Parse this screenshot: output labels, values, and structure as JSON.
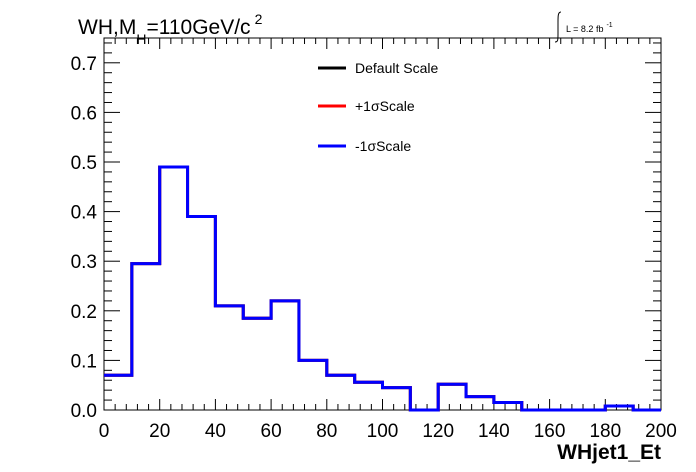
{
  "chart_data": {
    "type": "histogram",
    "title_main": "WH,M",
    "title_sub": "H",
    "title_rest": "=110GeV/c",
    "title_sup": "2",
    "lumi_label": "L = 8.2 fb",
    "lumi_sup": "-1",
    "xlabel": "WHjet1_Et",
    "ylabel": "",
    "xlim": [
      0,
      200
    ],
    "ylim": [
      0,
      0.75
    ],
    "x_ticks": [
      "0",
      "20",
      "40",
      "60",
      "80",
      "100",
      "120",
      "140",
      "160",
      "180",
      "200"
    ],
    "y_ticks": [
      "0.0",
      "0.1",
      "0.2",
      "0.3",
      "0.4",
      "0.5",
      "0.6",
      "0.7"
    ],
    "bin_edges": [
      0,
      10,
      20,
      30,
      40,
      50,
      60,
      70,
      80,
      90,
      100,
      110,
      120,
      130,
      140,
      150,
      160,
      170,
      180,
      190,
      200
    ],
    "legend": [
      {
        "name": "Default Scale",
        "color": "#000000"
      },
      {
        "name": "+1σScale",
        "color": "#ff0000"
      },
      {
        "name": "-1σScale",
        "color": "#0000ff"
      }
    ],
    "series": [
      {
        "name": "Default Scale",
        "color": "#000000",
        "values": [
          0.07,
          0.295,
          0.49,
          0.39,
          0.21,
          0.185,
          0.22,
          0.1,
          0.07,
          0.056,
          0.045,
          0.0,
          0.052,
          0.027,
          0.015,
          0.0,
          0.0,
          0.0,
          0.008,
          0.0
        ]
      },
      {
        "name": "+1σScale",
        "color": "#ff0000",
        "values": [
          0.07,
          0.295,
          0.49,
          0.39,
          0.21,
          0.185,
          0.22,
          0.1,
          0.07,
          0.056,
          0.045,
          0.0,
          0.052,
          0.027,
          0.015,
          0.0,
          0.0,
          0.0,
          0.008,
          0.0
        ]
      },
      {
        "name": "-1σScale",
        "color": "#0000ff",
        "values": [
          0.07,
          0.295,
          0.49,
          0.39,
          0.21,
          0.185,
          0.22,
          0.1,
          0.07,
          0.056,
          0.045,
          0.0,
          0.052,
          0.027,
          0.015,
          0.0,
          0.0,
          0.0,
          0.008,
          0.0
        ]
      }
    ]
  }
}
